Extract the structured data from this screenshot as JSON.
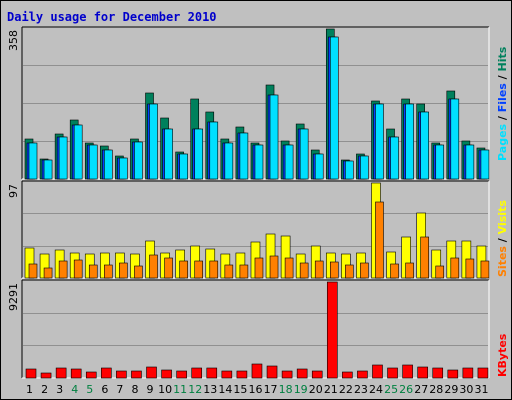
{
  "title": "Daily usage for December 2010",
  "colors": {
    "background": "#c0c0c0",
    "grid": "#909090",
    "hits": "#00805c",
    "files": "#0040ff",
    "pages": "#00e0ff",
    "visits": "#ffff00",
    "sites": "#ff8000",
    "kbytes": "#ff0000",
    "weekend": "#008040",
    "weekday": "#000000",
    "title": "#0000cc"
  },
  "chart_data": [
    {
      "type": "bar",
      "panel": "top",
      "ymax_label": "358",
      "ylim": [
        0,
        358
      ],
      "legend": [
        "Pages",
        "Files",
        "Hits"
      ],
      "categories": [
        "1",
        "2",
        "3",
        "4",
        "5",
        "6",
        "7",
        "8",
        "9",
        "10",
        "11",
        "12",
        "13",
        "14",
        "15",
        "16",
        "17",
        "18",
        "19",
        "20",
        "21",
        "22",
        "23",
        "24",
        "25",
        "26",
        "27",
        "28",
        "29",
        "30",
        "31"
      ],
      "series": [
        {
          "name": "Hits",
          "values": [
            96,
            48,
            108,
            140,
            87,
            78,
            55,
            95,
            205,
            145,
            65,
            190,
            160,
            95,
            125,
            85,
            225,
            90,
            132,
            70,
            358,
            45,
            60,
            185,
            120,
            190,
            180,
            85,
            210,
            90,
            75
          ]
        },
        {
          "name": "Files",
          "values": [
            85,
            45,
            100,
            130,
            80,
            70,
            50,
            88,
            180,
            120,
            60,
            120,
            135,
            85,
            110,
            80,
            200,
            80,
            120,
            60,
            340,
            42,
            55,
            180,
            100,
            180,
            160,
            80,
            190,
            80,
            70
          ]
        },
        {
          "name": "Pages",
          "values": [
            85,
            45,
            100,
            130,
            80,
            70,
            50,
            88,
            180,
            120,
            60,
            120,
            135,
            85,
            110,
            80,
            200,
            80,
            120,
            60,
            340,
            42,
            55,
            180,
            100,
            180,
            160,
            80,
            190,
            80,
            70
          ]
        }
      ],
      "day_order_note": ""
    },
    {
      "type": "bar",
      "panel": "middle",
      "ymax_label": "97",
      "ylim": [
        0,
        97
      ],
      "legend": [
        "Sites",
        "Visits"
      ],
      "categories": [
        "1",
        "2",
        "3",
        "4",
        "5",
        "6",
        "7",
        "8",
        "9",
        "10",
        "11",
        "12",
        "13",
        "14",
        "15",
        "16",
        "17",
        "18",
        "19",
        "20",
        "21",
        "22",
        "23",
        "24",
        "25",
        "26",
        "27",
        "28",
        "29",
        "30",
        "31"
      ],
      "series": [
        {
          "name": "Visits",
          "values": [
            31,
            25,
            29,
            26,
            24,
            26,
            26,
            24,
            38,
            26,
            29,
            33,
            30,
            25,
            26,
            37,
            45,
            43,
            25,
            33,
            26,
            24,
            26,
            97,
            27,
            42,
            66,
            29,
            38,
            38,
            33
          ]
        },
        {
          "name": "Sites",
          "values": [
            14,
            10,
            17,
            18,
            13,
            13,
            15,
            12,
            23,
            20,
            17,
            17,
            17,
            13,
            13,
            20,
            22,
            20,
            15,
            17,
            16,
            13,
            15,
            78,
            14,
            15,
            42,
            12,
            20,
            19,
            17
          ]
        }
      ]
    },
    {
      "type": "bar",
      "panel": "bottom",
      "ymax_label": "9291",
      "ylim": [
        0,
        9291
      ],
      "legend": [
        "KBytes"
      ],
      "categories": [
        "1",
        "2",
        "3",
        "4",
        "5",
        "6",
        "7",
        "8",
        "9",
        "10",
        "11",
        "12",
        "13",
        "14",
        "15",
        "16",
        "17",
        "18",
        "19",
        "20",
        "21",
        "22",
        "23",
        "24",
        "25",
        "26",
        "27",
        "28",
        "29",
        "30",
        "31"
      ],
      "series": [
        {
          "name": "KBytes",
          "values": [
            890,
            500,
            1000,
            900,
            600,
            1000,
            700,
            700,
            1100,
            800,
            700,
            1000,
            1000,
            700,
            700,
            1400,
            1200,
            700,
            900,
            700,
            9291,
            550,
            700,
            1300,
            1000,
            1250,
            1050,
            1000,
            800,
            1000,
            950
          ]
        }
      ]
    }
  ],
  "x_labels": [
    {
      "text": "1",
      "weekend": false
    },
    {
      "text": "2",
      "weekend": false
    },
    {
      "text": "3",
      "weekend": false
    },
    {
      "text": "4",
      "weekend": true
    },
    {
      "text": "5",
      "weekend": true
    },
    {
      "text": "6",
      "weekend": false
    },
    {
      "text": "7",
      "weekend": false
    },
    {
      "text": "8",
      "weekend": false
    },
    {
      "text": "9",
      "weekend": false
    },
    {
      "text": "10",
      "weekend": false
    },
    {
      "text": "11",
      "weekend": true
    },
    {
      "text": "12",
      "weekend": true
    },
    {
      "text": "13",
      "weekend": false
    },
    {
      "text": "14",
      "weekend": false
    },
    {
      "text": "15",
      "weekend": false
    },
    {
      "text": "16",
      "weekend": false
    },
    {
      "text": "17",
      "weekend": false
    },
    {
      "text": "18",
      "weekend": true
    },
    {
      "text": "19",
      "weekend": true
    },
    {
      "text": "20",
      "weekend": false
    },
    {
      "text": "21",
      "weekend": false
    },
    {
      "text": "22",
      "weekend": false
    },
    {
      "text": "23",
      "weekend": false
    },
    {
      "text": "24",
      "weekend": false
    },
    {
      "text": "25",
      "weekend": true
    },
    {
      "text": "26",
      "weekend": true
    },
    {
      "text": "27",
      "weekend": false
    },
    {
      "text": "28",
      "weekend": false
    },
    {
      "text": "29",
      "weekend": false
    },
    {
      "text": "30",
      "weekend": false
    },
    {
      "text": "31",
      "weekend": false
    }
  ]
}
